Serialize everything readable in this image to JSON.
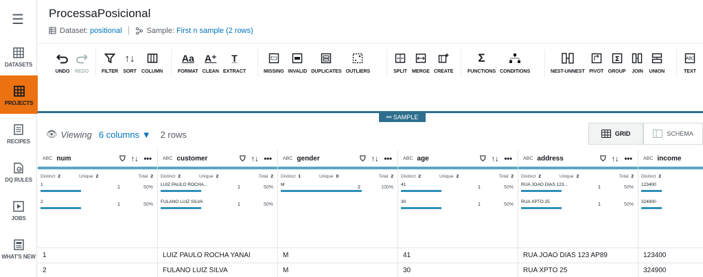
{
  "sidebar": {
    "items": [
      {
        "label": "DATASETS"
      },
      {
        "label": "PROJECTS"
      },
      {
        "label": "RECIPES"
      },
      {
        "label": "DQ RULES"
      },
      {
        "label": "JOBS"
      },
      {
        "label": "WHAT'S NEW"
      }
    ]
  },
  "header": {
    "title": "ProcessaPosicional",
    "dataset_label": "Dataset:",
    "dataset_value": "positional",
    "sample_label": "Sample:",
    "sample_value": "First n sample (2 rows)"
  },
  "toolbar": {
    "undo": "UNDO",
    "redo": "REDO",
    "filter": "FILTER",
    "sort": "SORT",
    "column": "COLUMN",
    "format": "FORMAT",
    "clean": "CLEAN",
    "extract": "EXTRACT",
    "missing": "MISSING",
    "invalid": "INVALID",
    "duplicates": "DUPLICATES",
    "outliers": "OUTLIERS",
    "split": "SPLIT",
    "merge": "MERGE",
    "create": "CREATE",
    "functions": "FUNCTIONS",
    "conditions": "CONDITIONS",
    "nest": "NEST-UNNEST",
    "pivot": "PIVOT",
    "group": "GROUP",
    "join": "JOIN",
    "union": "UNION",
    "text": "TEXT"
  },
  "grid": {
    "sample_tag": "SAMPLE",
    "viewing": "Viewing",
    "columns_count": "6 columns",
    "rows_count": "2 rows",
    "grid_btn": "GRID",
    "schema_btn": "SCHEMA"
  },
  "stat_labels": {
    "distinct": "Distinct",
    "unique": "Unique",
    "total": "Total"
  },
  "columns": [
    {
      "type": "ABC",
      "name": "num",
      "distinct": "2",
      "unique": "2",
      "total": "2",
      "values": [
        {
          "v": "1",
          "c": "1",
          "p": "50%"
        },
        {
          "v": "2",
          "c": "1",
          "p": "50%"
        }
      ]
    },
    {
      "type": "ABC",
      "name": "customer",
      "distinct": "2",
      "unique": "2",
      "total": "2",
      "values": [
        {
          "v": "LUIZ PAULO ROCHA...",
          "c": "1",
          "p": "50%"
        },
        {
          "v": "FULANO LUIZ SILVA",
          "c": "1",
          "p": "50%"
        }
      ]
    },
    {
      "type": "ABC",
      "name": "gender",
      "distinct": "1",
      "unique": "0",
      "total": "2",
      "values": [
        {
          "v": "M",
          "c": "2",
          "p": "100%"
        }
      ]
    },
    {
      "type": "ABC",
      "name": "age",
      "distinct": "2",
      "unique": "2",
      "total": "2",
      "values": [
        {
          "v": "41",
          "c": "1",
          "p": "50%"
        },
        {
          "v": "30",
          "c": "1",
          "p": "50%"
        }
      ]
    },
    {
      "type": "ABC",
      "name": "address",
      "distinct": "2",
      "unique": "2",
      "total": "2",
      "values": [
        {
          "v": "RUA JOAO DIAS 123...",
          "c": "1",
          "p": "50%"
        },
        {
          "v": "RUA XPTO 25",
          "c": "1",
          "p": "50%"
        }
      ]
    },
    {
      "type": "ABC",
      "name": "income",
      "distinct": "2",
      "unique": "",
      "total": "",
      "values": [
        {
          "v": "123400",
          "c": "",
          "p": ""
        },
        {
          "v": "324900",
          "c": "",
          "p": ""
        }
      ]
    }
  ],
  "rows": [
    [
      "1",
      "LUIZ PAULO ROCHA YANAI",
      "M",
      "41",
      "RUA JOAO DIAS 123 AP89",
      "123400"
    ],
    [
      "2",
      "FULANO LUIZ SILVA",
      "M",
      "30",
      "RUA XPTO 25",
      "324900"
    ]
  ]
}
